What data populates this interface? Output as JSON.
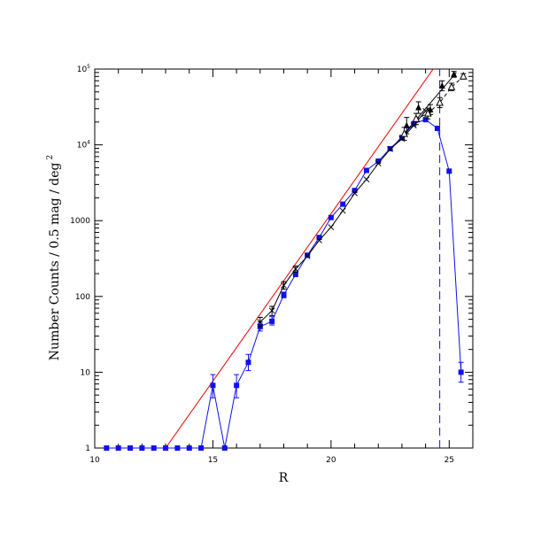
{
  "chart_data": {
    "type": "scatter",
    "title": "",
    "xlabel": "R",
    "ylabel": "Number Counts / 0.5 mag / deg",
    "ylabel_sup": "2",
    "xlim": [
      10,
      26
    ],
    "ylim": [
      1,
      100000
    ],
    "yscale": "log",
    "x_ticks": [
      {
        "value": 10,
        "label": "10"
      },
      {
        "value": 15,
        "label": "15"
      },
      {
        "value": 20,
        "label": "20"
      },
      {
        "value": 25,
        "label": "25"
      }
    ],
    "y_ticks": [
      {
        "value": 1,
        "label": "1",
        "sup": ""
      },
      {
        "value": 10,
        "label": "10",
        "sup": ""
      },
      {
        "value": 100,
        "label": "100",
        "sup": ""
      },
      {
        "value": 1000,
        "label": "1000",
        "sup": ""
      },
      {
        "value": 10000,
        "label": "10",
        "sup": "4"
      },
      {
        "value": 100000,
        "label": "10",
        "sup": "5"
      }
    ],
    "colors": {
      "main": "#1010ee",
      "fit": "#ee0000",
      "lit": "#000000"
    },
    "series": [
      {
        "marker": "square",
        "color": "#1010ee",
        "points": [
          {
            "x": 10.5,
            "y": 1
          },
          {
            "x": 11.0,
            "y": 1
          },
          {
            "x": 11.5,
            "y": 1
          },
          {
            "x": 12.0,
            "y": 1
          },
          {
            "x": 12.5,
            "y": 1
          },
          {
            "x": 13.0,
            "y": 1
          },
          {
            "x": 13.5,
            "y": 1
          },
          {
            "x": 14.0,
            "y": 1
          },
          {
            "x": 14.5,
            "y": 1
          },
          {
            "x": 15.0,
            "y": 6.7,
            "ylo": 4.6,
            "yhi": 9.3
          },
          {
            "x": 15.5,
            "y": 1
          },
          {
            "x": 16.0,
            "y": 6.7,
            "ylo": 4.6,
            "yhi": 9.3
          },
          {
            "x": 16.5,
            "y": 13.5,
            "ylo": 10.5,
            "yhi": 17.2
          },
          {
            "x": 17.0,
            "y": 40,
            "ylo": 35,
            "yhi": 46
          },
          {
            "x": 17.5,
            "y": 47,
            "ylo": 42,
            "yhi": 54
          },
          {
            "x": 18.0,
            "y": 105,
            "ylo": 96,
            "yhi": 114
          },
          {
            "x": 18.5,
            "y": 195
          },
          {
            "x": 19.0,
            "y": 350
          },
          {
            "x": 19.5,
            "y": 600
          },
          {
            "x": 20.0,
            "y": 1100
          },
          {
            "x": 20.5,
            "y": 1650
          },
          {
            "x": 21.0,
            "y": 2500
          },
          {
            "x": 21.5,
            "y": 4600
          },
          {
            "x": 22.0,
            "y": 6100
          },
          {
            "x": 22.5,
            "y": 8900
          },
          {
            "x": 23.0,
            "y": 12500
          },
          {
            "x": 23.5,
            "y": 19000
          },
          {
            "x": 24.0,
            "y": 21500
          },
          {
            "x": 24.5,
            "y": 16500
          },
          {
            "x": 25.0,
            "y": 4500
          },
          {
            "x": 25.5,
            "y": 10,
            "ylo": 7.4,
            "yhi": 13.5
          }
        ]
      },
      {
        "marker": "cross",
        "color": "#000000",
        "points": [
          {
            "x": 17.0,
            "y": 46,
            "ylo": 40,
            "yhi": 53
          },
          {
            "x": 17.5,
            "y": 65,
            "ylo": 56,
            "yhi": 74
          },
          {
            "x": 18.0,
            "y": 140,
            "ylo": 125,
            "yhi": 157
          },
          {
            "x": 18.5,
            "y": 230,
            "ylo": 210,
            "yhi": 252
          },
          {
            "x": 19.0,
            "y": 340
          },
          {
            "x": 19.5,
            "y": 550
          },
          {
            "x": 20.0,
            "y": 820
          },
          {
            "x": 20.5,
            "y": 1350
          },
          {
            "x": 21.0,
            "y": 2300
          },
          {
            "x": 21.5,
            "y": 3500
          },
          {
            "x": 22.0,
            "y": 5700
          },
          {
            "x": 22.5,
            "y": 8800
          },
          {
            "x": 23.0,
            "y": 12000
          },
          {
            "x": 23.5,
            "y": 18000
          },
          {
            "x": 24.0,
            "y": 28000
          }
        ]
      },
      {
        "marker": "triangle-filled",
        "color": "#000000",
        "points": [
          {
            "x": 23.2,
            "y": 18000,
            "ylo": 14000,
            "yhi": 23000
          },
          {
            "x": 23.7,
            "y": 31000,
            "ylo": 26000,
            "yhi": 37000
          },
          {
            "x": 24.2,
            "y": 29000,
            "ylo": 25000,
            "yhi": 34000
          },
          {
            "x": 24.7,
            "y": 60000,
            "ylo": 52000,
            "yhi": 70000
          },
          {
            "x": 25.2,
            "y": 85000,
            "ylo": 78000,
            "yhi": 93000
          }
        ]
      },
      {
        "marker": "triangle-open",
        "color": "#000000",
        "points": [
          {
            "x": 23.1,
            "y": 14000,
            "ylo": 11500,
            "yhi": 17000
          },
          {
            "x": 23.6,
            "y": 22000,
            "ylo": 18500,
            "yhi": 26000
          },
          {
            "x": 24.1,
            "y": 26000,
            "ylo": 22000,
            "yhi": 30500
          },
          {
            "x": 24.6,
            "y": 36000,
            "ylo": 31000,
            "yhi": 42000
          },
          {
            "x": 25.1,
            "y": 58000,
            "ylo": 52000,
            "yhi": 65000
          },
          {
            "x": 25.6,
            "y": 80000,
            "ylo": 74000,
            "yhi": 87000
          }
        ]
      }
    ],
    "lines": [
      {
        "style": "solid",
        "color": "#ee0000",
        "from": {
          "x": 13.0,
          "y": 1
        },
        "to": {
          "x": 24.5,
          "y": 120000
        }
      },
      {
        "style": "solid",
        "color": "#000000",
        "from": {
          "x": 22.5,
          "y": 8500
        },
        "to": {
          "x": 25.3,
          "y": 90000
        }
      },
      {
        "style": "dashed",
        "color": "#1010ee",
        "from": {
          "x": 24.6,
          "y": 1
        },
        "to": {
          "x": 24.6,
          "y": 100000
        }
      }
    ]
  }
}
